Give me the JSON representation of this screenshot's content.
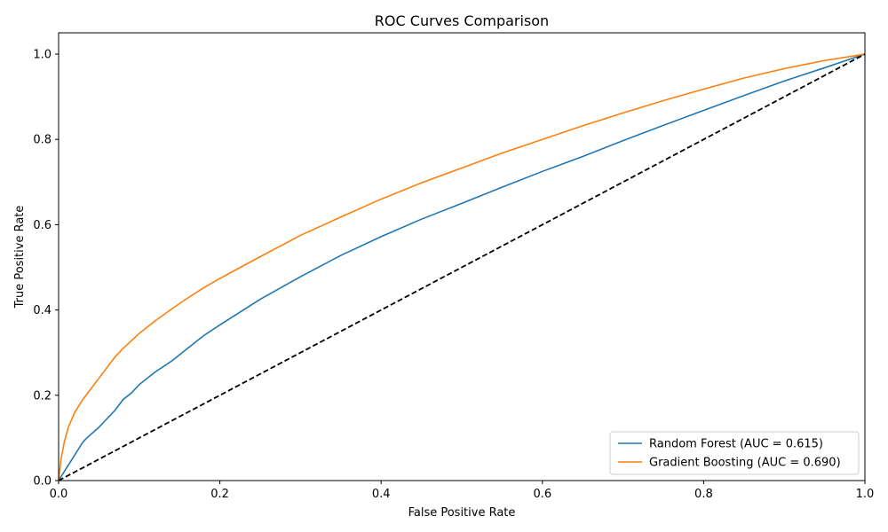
{
  "chart_data": {
    "type": "line",
    "title": "ROC Curves Comparison",
    "xlabel": "False Positive Rate",
    "ylabel": "True Positive Rate",
    "xlim": [
      0,
      1
    ],
    "ylim": [
      0,
      1.05
    ],
    "x_ticks": [
      "0.0",
      "0.2",
      "0.4",
      "0.6",
      "0.8",
      "1.0"
    ],
    "y_ticks": [
      "0.0",
      "0.2",
      "0.4",
      "0.6",
      "0.8",
      "1.0"
    ],
    "grid": false,
    "legend_position": "bottom-right",
    "series": [
      {
        "name": "Random Forest (AUC = 0.615)",
        "color": "#1f77b4",
        "x": [
          0,
          0.01,
          0.02,
          0.03,
          0.035,
          0.05,
          0.06,
          0.07,
          0.08,
          0.09,
          0.1,
          0.12,
          0.14,
          0.16,
          0.18,
          0.2,
          0.25,
          0.3,
          0.35,
          0.4,
          0.45,
          0.5,
          0.55,
          0.6,
          0.65,
          0.7,
          0.75,
          0.8,
          0.85,
          0.9,
          0.95,
          1.0
        ],
        "y": [
          0,
          0.03,
          0.06,
          0.09,
          0.1,
          0.125,
          0.145,
          0.165,
          0.19,
          0.205,
          0.225,
          0.255,
          0.28,
          0.31,
          0.34,
          0.365,
          0.425,
          0.478,
          0.528,
          0.572,
          0.613,
          0.65,
          0.688,
          0.725,
          0.76,
          0.797,
          0.833,
          0.868,
          0.903,
          0.937,
          0.968,
          1.0
        ]
      },
      {
        "name": "Gradient Boosting (AUC = 0.690)",
        "color": "#ff7f0e",
        "x": [
          0,
          0.003,
          0.007,
          0.012,
          0.02,
          0.03,
          0.04,
          0.05,
          0.06,
          0.07,
          0.08,
          0.1,
          0.12,
          0.14,
          0.16,
          0.18,
          0.2,
          0.25,
          0.3,
          0.35,
          0.4,
          0.45,
          0.5,
          0.55,
          0.6,
          0.65,
          0.7,
          0.75,
          0.8,
          0.85,
          0.9,
          0.95,
          1.0
        ],
        "y": [
          0,
          0.05,
          0.09,
          0.125,
          0.16,
          0.19,
          0.215,
          0.24,
          0.265,
          0.29,
          0.31,
          0.345,
          0.375,
          0.402,
          0.428,
          0.452,
          0.474,
          0.525,
          0.575,
          0.618,
          0.66,
          0.698,
          0.733,
          0.768,
          0.8,
          0.832,
          0.862,
          0.891,
          0.918,
          0.944,
          0.966,
          0.985,
          1.0
        ]
      },
      {
        "name": "",
        "color": "#000000",
        "dashed": true,
        "x": [
          0,
          1
        ],
        "y": [
          0,
          1
        ]
      }
    ]
  }
}
